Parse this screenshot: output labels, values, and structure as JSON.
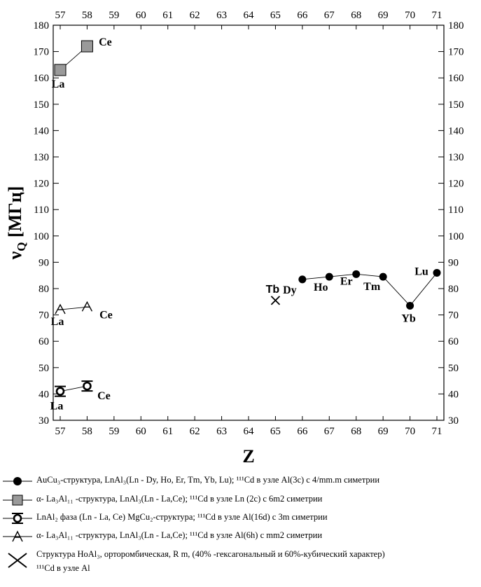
{
  "chart_data": {
    "type": "scatter",
    "title": "",
    "xlabel": "Z",
    "ylabel": "ν",
    "ylabel_sub": "Q",
    "ylabel_unit": " [МГц]",
    "xlim": [
      57,
      71
    ],
    "ylim": [
      30,
      180
    ],
    "x_ticks": [
      "57",
      "58",
      "59",
      "60",
      "61",
      "62",
      "63",
      "64",
      "65",
      "66",
      "67",
      "68",
      "69",
      "70",
      "71"
    ],
    "y_ticks": [
      "30",
      "40",
      "50",
      "60",
      "70",
      "80",
      "90",
      "100",
      "110",
      "120",
      "130",
      "140",
      "150",
      "160",
      "170",
      "180"
    ],
    "series": [
      {
        "marker": "circle",
        "connected": true,
        "points": [
          {
            "x": 66,
            "y": 83.5
          },
          {
            "x": 67,
            "y": 84.5
          },
          {
            "x": 68,
            "y": 85.5
          },
          {
            "x": 69,
            "y": 84.5
          },
          {
            "x": 70,
            "y": 73.5
          },
          {
            "x": 71,
            "y": 86
          }
        ],
        "labels": [
          "Dy",
          "Ho",
          "Er",
          "Tm",
          "Yb",
          "Lu"
        ]
      },
      {
        "marker": "square-hatched",
        "connected": true,
        "points": [
          {
            "x": 57,
            "y": 163
          },
          {
            "x": 58,
            "y": 172
          }
        ],
        "labels": [
          "La",
          "Ce"
        ]
      },
      {
        "marker": "mgcu2-symbol",
        "connected": true,
        "points": [
          {
            "x": 57,
            "y": 41
          },
          {
            "x": 58,
            "y": 43
          }
        ],
        "labels": [
          "La",
          "Ce"
        ]
      },
      {
        "marker": "triangle-open",
        "connected": true,
        "points": [
          {
            "x": 57,
            "y": 72
          },
          {
            "x": 58,
            "y": 73
          }
        ],
        "labels": [
          "La",
          "Ce"
        ]
      },
      {
        "marker": "cross",
        "connected": false,
        "points": [
          {
            "x": 65,
            "y": 75.5
          }
        ],
        "labels": [
          "Tb"
        ]
      }
    ]
  },
  "legend": [
    {
      "marker": "circle",
      "text": "AuCu₃-структура, LnAl₃(Ln - Dy, Ho, Er, Tm, Yb, Lu); ¹¹¹Cd в узле Al(3c)  с 4/mm.m симетрии"
    },
    {
      "marker": "square-hatched",
      "text": "α- La₃Al₁₁ -структура, LnAl₃(Ln - La,Ce);  ¹¹¹Cd в узле Ln (2c) с 6m2  симетрии"
    },
    {
      "marker": "mgcu2-symbol",
      "text": "LnAl₂ фаза (Ln - La, Ce) MgCu₂-структура; ¹¹¹Cd в узле Al(16d) с 3m симетрии"
    },
    {
      "marker": "triangle-open",
      "text": "α- La₃Al₁₁ -структура, LnAl₃(Ln - La,Ce); ¹¹¹Cd в узле Al(6h) с mm2 симетрии"
    },
    {
      "marker": "cross",
      "text": "Структура HoAl₃, орторомбическая, R m, (40% -гексагональный и 60%-кубический характер)",
      "text2": "¹¹¹Cd в узле Al"
    }
  ]
}
